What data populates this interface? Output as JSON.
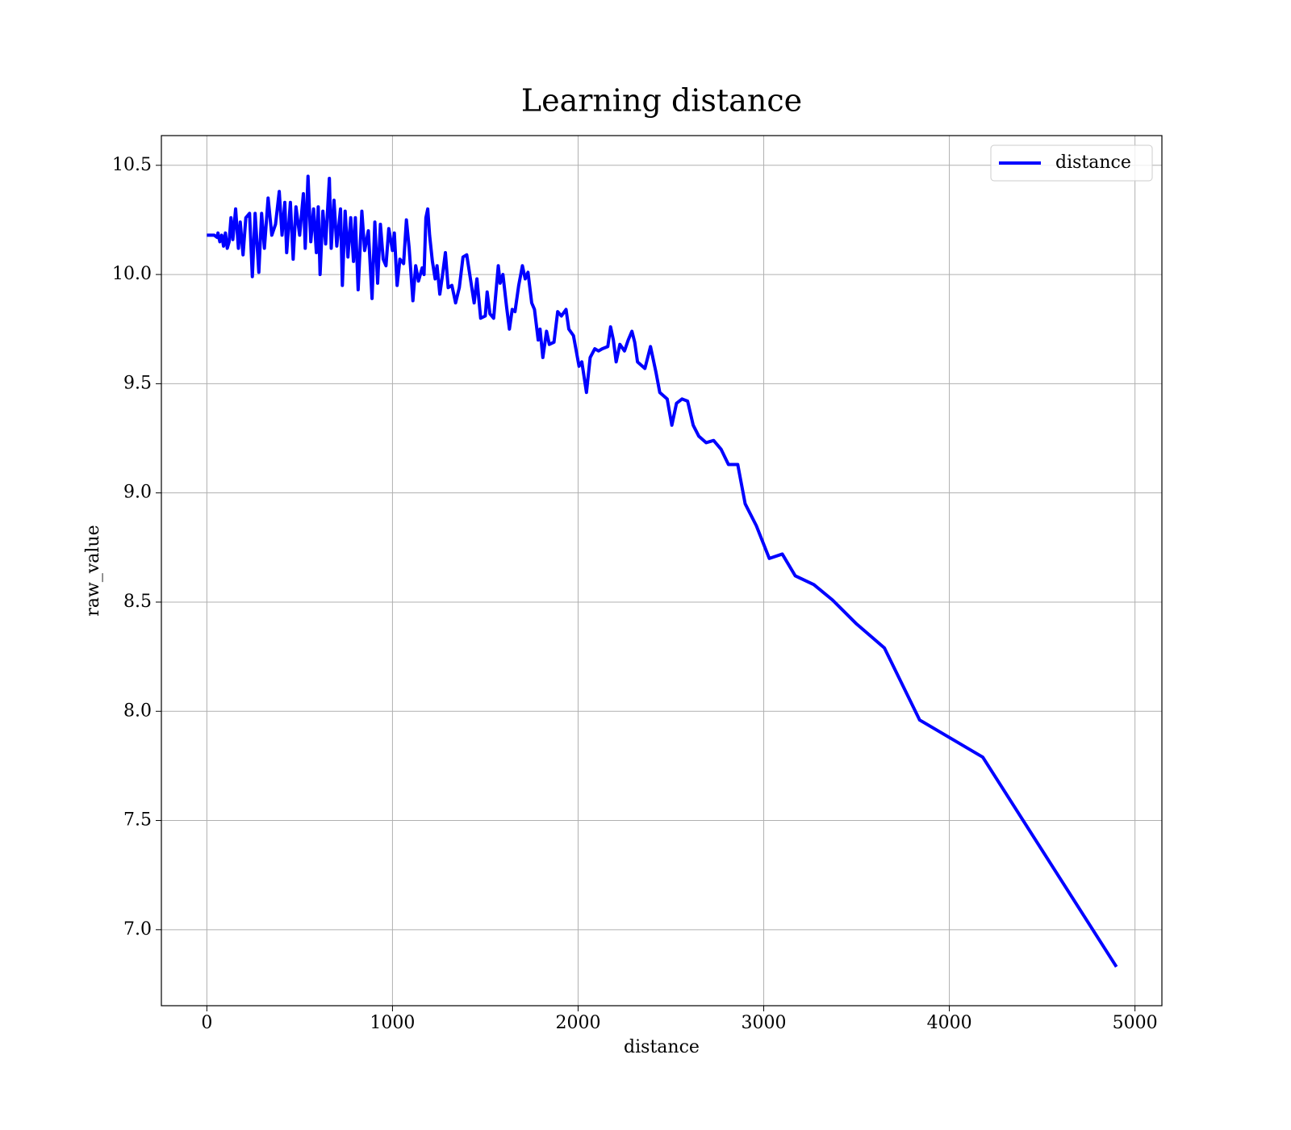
{
  "chart_data": {
    "type": "line",
    "title": "Learning distance",
    "xlabel": "distance",
    "ylabel": "raw_value",
    "x": [
      0,
      40,
      55,
      60,
      70,
      80,
      90,
      100,
      110,
      120,
      130,
      140,
      155,
      170,
      180,
      195,
      210,
      230,
      245,
      260,
      280,
      295,
      310,
      330,
      350,
      370,
      390,
      405,
      420,
      430,
      450,
      465,
      480,
      500,
      520,
      530,
      545,
      560,
      575,
      590,
      600,
      610,
      625,
      640,
      660,
      670,
      685,
      700,
      720,
      730,
      745,
      760,
      775,
      790,
      800,
      815,
      835,
      850,
      870,
      890,
      905,
      920,
      935,
      950,
      965,
      980,
      1000,
      1010,
      1025,
      1040,
      1060,
      1075,
      1090,
      1110,
      1125,
      1140,
      1160,
      1170,
      1180,
      1190,
      1200,
      1215,
      1230,
      1240,
      1255,
      1270,
      1285,
      1300,
      1320,
      1340,
      1360,
      1380,
      1400,
      1420,
      1440,
      1455,
      1475,
      1500,
      1510,
      1525,
      1545,
      1570,
      1580,
      1595,
      1615,
      1630,
      1645,
      1660,
      1680,
      1700,
      1715,
      1730,
      1750,
      1765,
      1785,
      1795,
      1810,
      1830,
      1845,
      1870,
      1890,
      1910,
      1935,
      1950,
      1975,
      1990,
      2005,
      2020,
      2045,
      2065,
      2090,
      2110,
      2130,
      2160,
      2175,
      2190,
      2205,
      2225,
      2250,
      2270,
      2290,
      2305,
      2320,
      2360,
      2390,
      2420,
      2440,
      2480,
      2505,
      2530,
      2560,
      2590,
      2620,
      2650,
      2690,
      2730,
      2770,
      2810,
      2860,
      2900,
      2960,
      3030,
      3100,
      3170,
      3270,
      3370,
      3500,
      3650,
      3840,
      4180,
      4900
    ],
    "series": [
      {
        "name": "distance",
        "color": "#0000ff",
        "values": [
          10.18,
          10.18,
          10.17,
          10.19,
          10.15,
          10.18,
          10.13,
          10.19,
          10.12,
          10.15,
          10.26,
          10.16,
          10.3,
          10.12,
          10.24,
          10.09,
          10.26,
          10.28,
          9.99,
          10.28,
          10.01,
          10.28,
          10.12,
          10.35,
          10.18,
          10.23,
          10.38,
          10.18,
          10.33,
          10.1,
          10.33,
          10.07,
          10.31,
          10.18,
          10.37,
          10.12,
          10.45,
          10.15,
          10.3,
          10.1,
          10.31,
          10.0,
          10.29,
          10.14,
          10.44,
          10.12,
          10.34,
          10.13,
          10.3,
          9.95,
          10.29,
          10.08,
          10.26,
          10.06,
          10.26,
          9.93,
          10.29,
          10.11,
          10.2,
          9.89,
          10.24,
          9.96,
          10.23,
          10.07,
          10.04,
          10.21,
          10.11,
          10.19,
          9.95,
          10.07,
          10.05,
          10.25,
          10.12,
          9.88,
          10.04,
          9.97,
          10.03,
          10.0,
          10.26,
          10.3,
          10.18,
          10.06,
          9.98,
          10.04,
          9.91,
          10.0,
          10.1,
          9.94,
          9.95,
          9.87,
          9.94,
          10.08,
          10.09,
          9.98,
          9.87,
          9.98,
          9.8,
          9.81,
          9.92,
          9.82,
          9.8,
          10.04,
          9.96,
          10.0,
          9.85,
          9.75,
          9.84,
          9.83,
          9.95,
          10.04,
          9.98,
          10.01,
          9.87,
          9.84,
          9.7,
          9.75,
          9.62,
          9.74,
          9.68,
          9.69,
          9.83,
          9.81,
          9.84,
          9.75,
          9.72,
          9.65,
          9.58,
          9.6,
          9.46,
          9.62,
          9.66,
          9.65,
          9.66,
          9.67,
          9.76,
          9.7,
          9.6,
          9.68,
          9.65,
          9.7,
          9.74,
          9.69,
          9.6,
          9.57,
          9.67,
          9.55,
          9.46,
          9.43,
          9.31,
          9.41,
          9.43,
          9.42,
          9.31,
          9.26,
          9.23,
          9.24,
          9.2,
          9.13,
          9.13,
          8.95,
          8.85,
          8.7,
          8.72,
          8.62,
          8.58,
          8.51,
          8.4,
          8.29,
          7.96,
          7.79,
          6.83
        ]
      }
    ],
    "xlim": [
      -245,
      5145
    ],
    "xticks": [
      0,
      1000,
      2000,
      3000,
      4000,
      5000
    ],
    "ylim": [
      6.652,
      10.636
    ],
    "yticks": [
      {
        "value": 7,
        "label": "7.0"
      },
      7.5,
      {
        "value": 8,
        "label": "8.0"
      },
      8.5,
      {
        "value": 9,
        "label": "9.0"
      },
      9.5,
      {
        "value": 10,
        "label": "10.0"
      },
      10.5
    ],
    "grid": true,
    "legend": "upper right"
  }
}
